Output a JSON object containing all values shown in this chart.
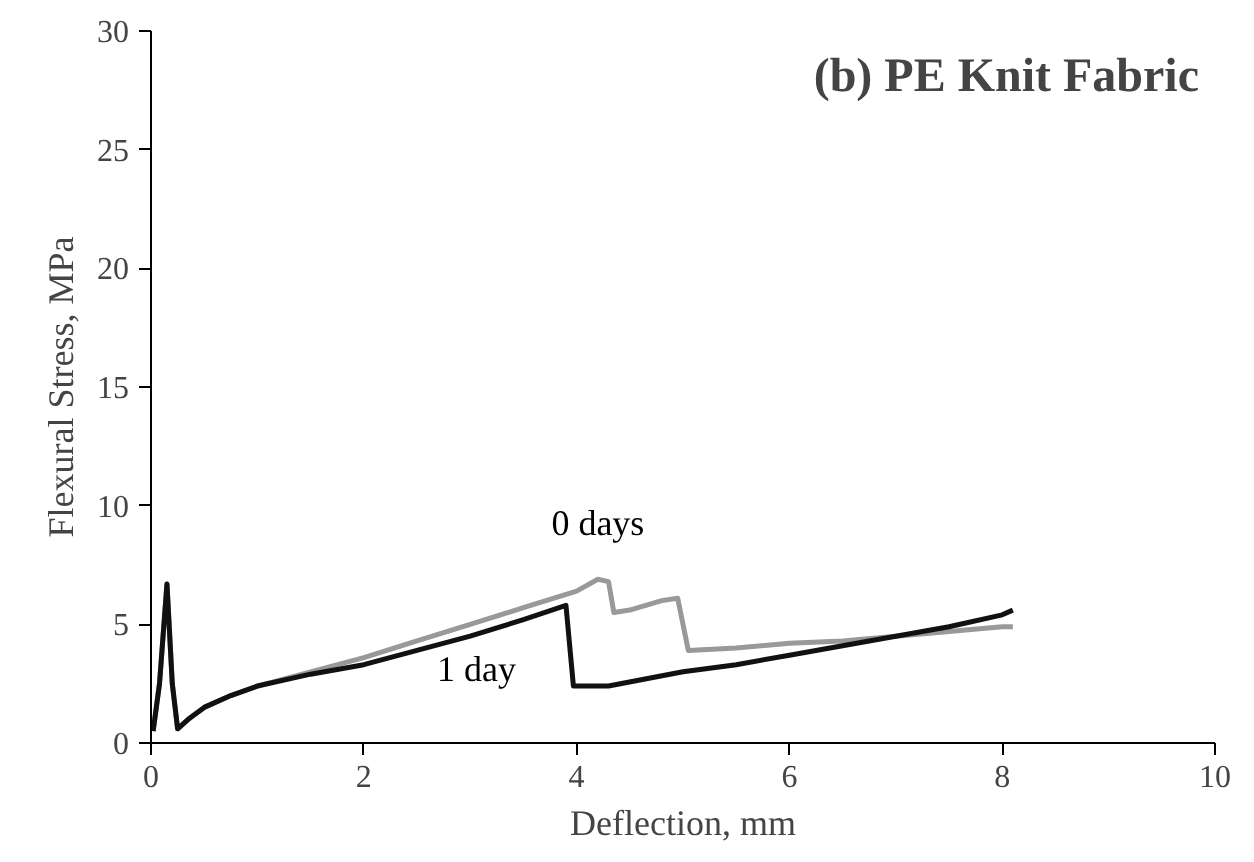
{
  "chart_data": {
    "type": "line",
    "title": "(b) PE Knit Fabric",
    "xlabel": "Deflection, mm",
    "ylabel": "Flexural Stress, MPa",
    "xlim": [
      0,
      10
    ],
    "ylim": [
      0,
      30
    ],
    "xticks": [
      0,
      2,
      4,
      6,
      8,
      10
    ],
    "yticks": [
      0,
      5,
      10,
      15,
      20,
      25,
      30
    ],
    "grid": false,
    "legend": false,
    "line_style": "solid",
    "series": [
      {
        "name": "0 days",
        "color": "#999999",
        "x": [
          0.02,
          0.08,
          0.15,
          0.2,
          0.25,
          0.35,
          0.5,
          0.75,
          1,
          1.5,
          2,
          2.5,
          3,
          3.5,
          4,
          4.2,
          4.3,
          4.35,
          4.5,
          4.8,
          4.95,
          5.05,
          5.5,
          6,
          6.5,
          7,
          7.5,
          8,
          8.1
        ],
        "values": [
          0.5,
          2.5,
          6.7,
          2.5,
          0.6,
          1.0,
          1.5,
          2.0,
          2.4,
          3.0,
          3.6,
          4.3,
          5.0,
          5.7,
          6.4,
          6.9,
          6.8,
          5.5,
          5.6,
          6.0,
          6.1,
          3.9,
          4.0,
          4.2,
          4.3,
          4.5,
          4.7,
          4.9,
          4.9
        ]
      },
      {
        "name": "1 day",
        "color": "#111111",
        "x": [
          0.02,
          0.08,
          0.15,
          0.2,
          0.25,
          0.35,
          0.5,
          0.75,
          1,
          1.5,
          2,
          2.5,
          3,
          3.5,
          3.9,
          3.97,
          4.3,
          5,
          5.5,
          6,
          6.5,
          7,
          7.5,
          8,
          8.1
        ],
        "values": [
          0.5,
          2.5,
          6.7,
          2.5,
          0.6,
          1.0,
          1.5,
          2.0,
          2.4,
          2.9,
          3.3,
          3.9,
          4.5,
          5.2,
          5.8,
          2.4,
          2.4,
          3.0,
          3.3,
          3.7,
          4.1,
          4.5,
          4.9,
          5.4,
          5.6
        ]
      }
    ]
  }
}
